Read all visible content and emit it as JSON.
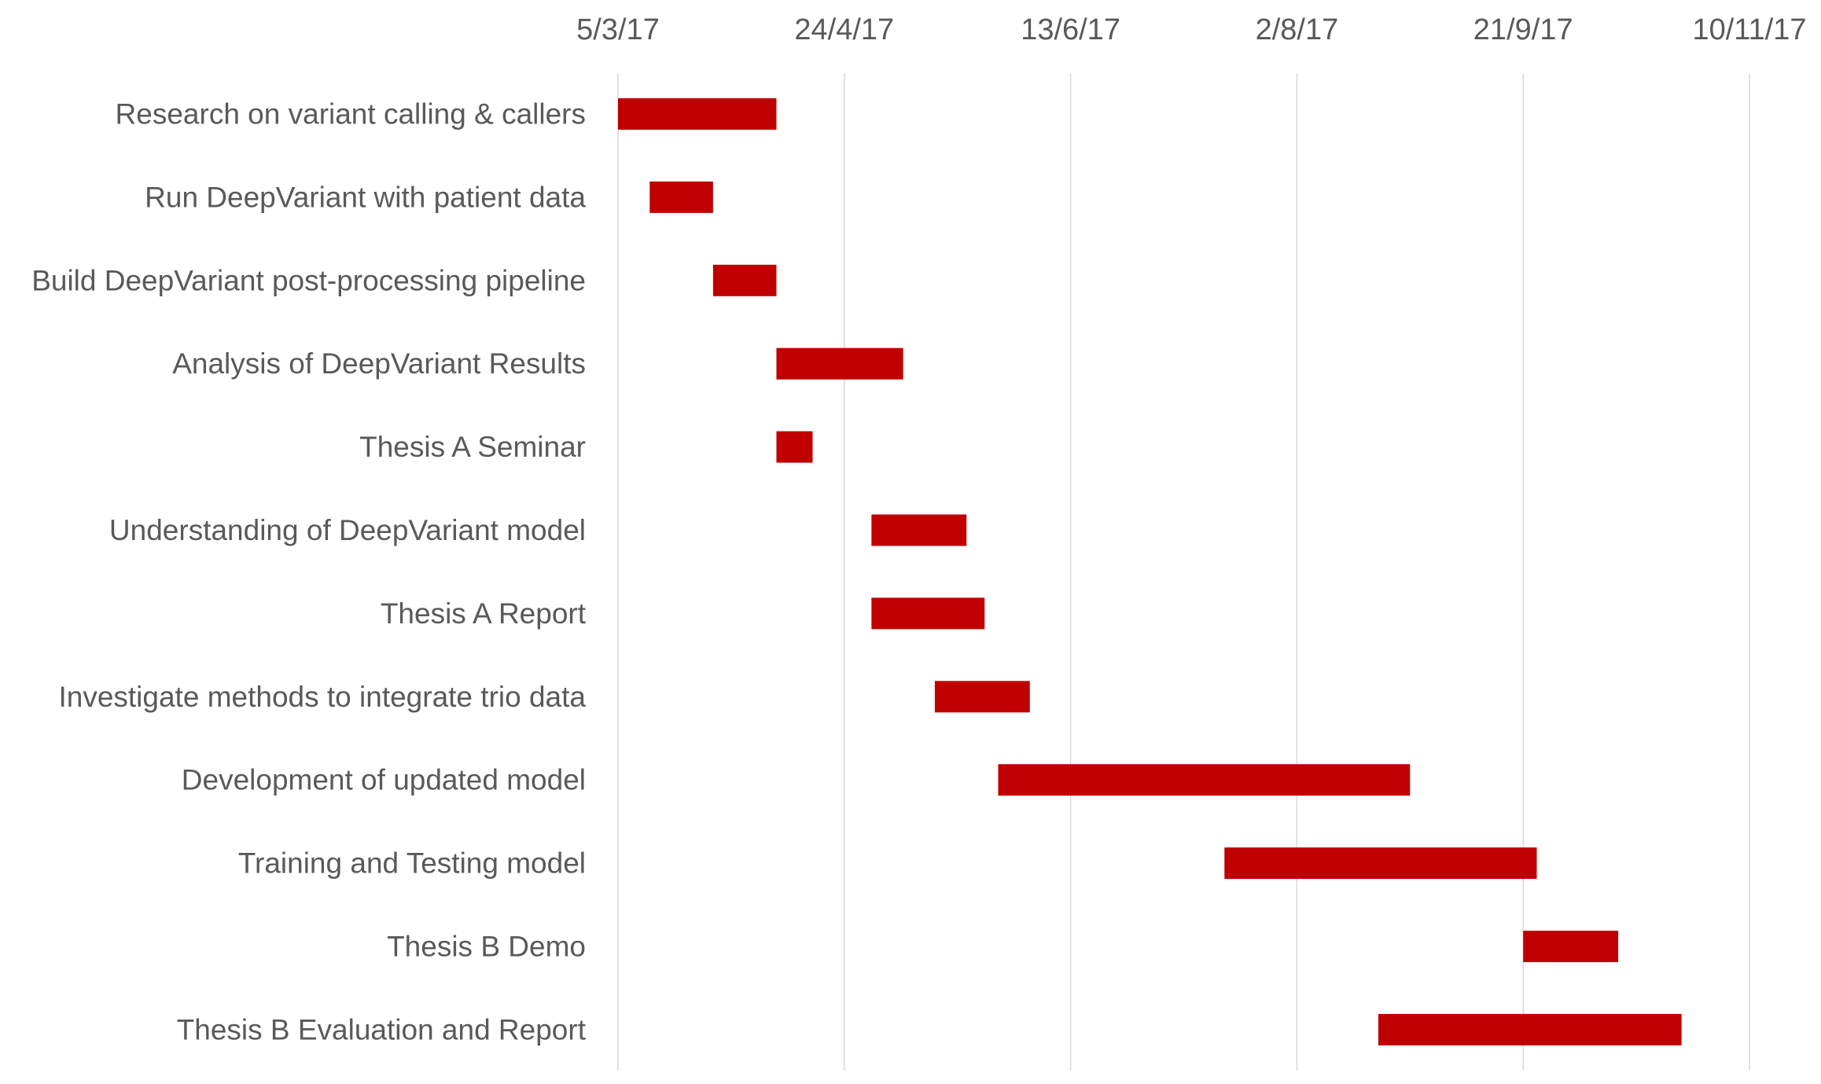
{
  "chart_data": {
    "type": "gantt",
    "title": "",
    "xlabel": "",
    "ylabel": "",
    "x_axis": {
      "position": "top",
      "min": "2017-03-05",
      "max": "2017-11-10",
      "ticks": [
        {
          "date": "2017-03-05",
          "label": "5/3/17"
        },
        {
          "date": "2017-04-24",
          "label": "24/4/17"
        },
        {
          "date": "2017-06-13",
          "label": "13/6/17"
        },
        {
          "date": "2017-08-02",
          "label": "2/8/17"
        },
        {
          "date": "2017-09-21",
          "label": "21/9/17"
        },
        {
          "date": "2017-11-10",
          "label": "10/11/17"
        }
      ],
      "grid": true
    },
    "bar_color": "#c00000",
    "tasks": [
      {
        "name": "Research on variant calling & callers",
        "start": "2017-03-05",
        "end": "2017-04-09"
      },
      {
        "name": "Run DeepVariant with patient data",
        "start": "2017-03-12",
        "end": "2017-03-26"
      },
      {
        "name": "Build DeepVariant post-processing pipeline",
        "start": "2017-03-26",
        "end": "2017-04-09"
      },
      {
        "name": "Analysis of DeepVariant Results",
        "start": "2017-04-09",
        "end": "2017-05-07"
      },
      {
        "name": "Thesis A Seminar",
        "start": "2017-04-09",
        "end": "2017-04-17"
      },
      {
        "name": "Understanding of DeepVariant model",
        "start": "2017-04-30",
        "end": "2017-05-21"
      },
      {
        "name": "Thesis A Report",
        "start": "2017-04-30",
        "end": "2017-05-25"
      },
      {
        "name": "Investigate methods to integrate trio data",
        "start": "2017-05-14",
        "end": "2017-06-04"
      },
      {
        "name": "Development of updated model",
        "start": "2017-05-28",
        "end": "2017-08-27"
      },
      {
        "name": "Training and Testing model",
        "start": "2017-07-17",
        "end": "2017-09-24"
      },
      {
        "name": "Thesis B Demo",
        "start": "2017-09-21",
        "end": "2017-10-12"
      },
      {
        "name": "Thesis B Evaluation and Report",
        "start": "2017-08-20",
        "end": "2017-10-26"
      }
    ]
  }
}
